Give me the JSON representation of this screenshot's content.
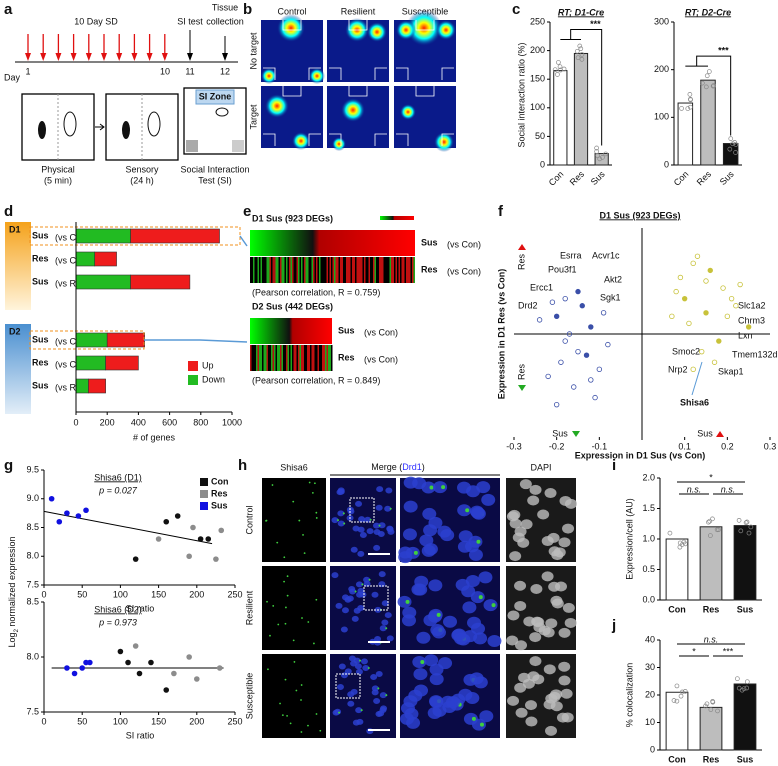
{
  "panel_labels": [
    "a",
    "b",
    "c",
    "d",
    "e",
    "f",
    "g",
    "h",
    "i",
    "j"
  ],
  "a": {
    "protocol": "10 Day SD",
    "day": "Day",
    "days": [
      "1",
      "10",
      "11",
      "12"
    ],
    "si_test": "SI test",
    "tissue": [
      "Tissue",
      "collection"
    ],
    "si_zone": "SI Zone",
    "captions": [
      [
        "Physical",
        "(5 min)"
      ],
      [
        "Sensory",
        "(24 h)"
      ],
      [
        "Social Interaction",
        "Test (SI)"
      ]
    ]
  },
  "b": {
    "columns": [
      "Control",
      "Resilient",
      "Susceptible"
    ],
    "rows": [
      "No target",
      "Target"
    ]
  },
  "c": {
    "ylabel": "Social interaction ratio (%)",
    "significance": "***",
    "charts": [
      {
        "type": "bar",
        "title": "RT; D1-Cre",
        "categories": [
          "Con",
          "Res",
          "Sus"
        ],
        "values": [
          165,
          195,
          20
        ],
        "colors": [
          "#ffffff",
          "#bdbdbd",
          "#bdbdbd"
        ],
        "ylim": [
          0,
          250
        ],
        "yticks": [
          0,
          50,
          100,
          150,
          200,
          250
        ]
      },
      {
        "type": "bar",
        "title": "RT; D2-Cre",
        "categories": [
          "Con",
          "Res",
          "Sus"
        ],
        "values": [
          130,
          178,
          45
        ],
        "colors": [
          "#ffffff",
          "#bdbdbd",
          "#111111"
        ],
        "ylim": [
          0,
          300
        ],
        "yticks": [
          0,
          100,
          200,
          300
        ]
      }
    ]
  },
  "d": {
    "type": "bar",
    "orientation": "horizontal",
    "groups": [
      "D1",
      "D2"
    ],
    "categories": [
      {
        "name": "Sus",
        "qualifier": "(vs Con)"
      },
      {
        "name": "Res",
        "qualifier": "(vs Con)"
      },
      {
        "name": "Sus",
        "qualifier": "(vs Res)"
      },
      {
        "name": "Sus",
        "qualifier": "(vs Con)"
      },
      {
        "name": "Res",
        "qualifier": "(vs Con)"
      },
      {
        "name": "Sus",
        "qualifier": "(vs Res)"
      }
    ],
    "series": [
      {
        "name": "Down",
        "color": "#22bb22",
        "values": [
          350,
          120,
          350,
          200,
          190,
          80
        ]
      },
      {
        "name": "Up",
        "color": "#ee1c1c",
        "values": [
          570,
          140,
          380,
          240,
          210,
          110
        ]
      }
    ],
    "xlim": [
      0,
      1000
    ],
    "xticks": [
      0,
      200,
      400,
      600,
      800,
      1000
    ],
    "xlabel": "# of genes"
  },
  "e": {
    "heatmaps": [
      {
        "title": "D1 Sus (923 DEGs)",
        "note": "(Pearson correlation, R = 0.759)",
        "rows": [
          [
            "Sus",
            "(vs Con)"
          ],
          [
            "Res",
            "(vs Con)"
          ]
        ]
      },
      {
        "title": "D2 Sus (442 DEGs)",
        "note": "(Pearson correlation, R = 0.849)",
        "rows": [
          [
            "Sus",
            "(vs Con)"
          ],
          [
            "Res",
            "(vs Con)"
          ]
        ]
      }
    ]
  },
  "f": {
    "type": "scatter",
    "title": "D1 Sus (923 DEGs)",
    "xlabel": "Expression in D1 Sus (vs Con)",
    "ylabel": "Expression in D1 Res (vs Con)",
    "xlim": [
      -0.3,
      0.3
    ],
    "ylim": [
      -0.3,
      0.3
    ],
    "xticks": [
      -0.3,
      -0.2,
      -0.1,
      0.1,
      0.2,
      0.3
    ],
    "series": [
      {
        "color": "#3a4fa8",
        "x": [
          -0.2,
          -0.15,
          -0.1,
          -0.18,
          -0.12,
          -0.22,
          -0.08,
          -0.16,
          -0.14,
          -0.19,
          -0.11,
          -0.17,
          -0.13,
          -0.24,
          -0.09,
          -0.2,
          -0.15,
          -0.12,
          -0.18,
          -0.21
        ],
        "y": [
          0.05,
          -0.05,
          -0.1,
          0.1,
          0.02,
          -0.12,
          -0.03,
          -0.15,
          0.08,
          -0.08,
          -0.18,
          0.0,
          -0.06,
          0.04,
          0.06,
          -0.2,
          0.12,
          -0.13,
          -0.02,
          0.09
        ]
      },
      {
        "color": "#c8c23a",
        "x": [
          0.1,
          0.15,
          0.2,
          0.12,
          0.18,
          0.08,
          0.22,
          0.14,
          0.16,
          0.11,
          0.19,
          0.13,
          0.25,
          0.09,
          0.17,
          0.21,
          0.15,
          0.12,
          0.23,
          0.07
        ],
        "y": [
          0.1,
          0.15,
          0.05,
          0.2,
          -0.02,
          0.12,
          0.08,
          -0.05,
          0.18,
          0.03,
          0.13,
          0.22,
          0.02,
          0.16,
          -0.08,
          0.1,
          0.06,
          -0.1,
          0.14,
          0.05
        ]
      }
    ],
    "quadrant_labels": [
      "Res",
      "Res",
      "Sus",
      "Sus"
    ],
    "gene_labels": [
      "Esrra",
      "Acvr1c",
      "Pou3f1",
      "Akt2",
      "Ercc1",
      "Sgk1",
      "Drd2",
      "Slc1a2",
      "Chrm3",
      "Lxn",
      "Smoc2",
      "Nrp2",
      "Tmem132d",
      "Skap1"
    ],
    "highlight_gene": "Shisa6"
  },
  "g": {
    "xlabel": "SI ratio",
    "ylabel": [
      "Log",
      "2",
      " normalized expression"
    ],
    "charts": [
      {
        "type": "scatter",
        "title": "Shisa6 (D1)",
        "p": "p = 0.027",
        "xlim": [
          0,
          250
        ],
        "xticks": [
          0,
          50,
          100,
          150,
          200,
          250
        ],
        "ylim": [
          7.5,
          9.5
        ],
        "yticks": [
          7.5,
          {
            "value": 8,
            "label": "8.0"
          },
          8.5,
          {
            "value": 9,
            "label": "9.0"
          },
          9.5
        ],
        "series": [
          {
            "name": "Con",
            "color": "#111111",
            "x": [
              120,
              160,
              175,
              205,
              215
            ],
            "y": [
              7.95,
              8.6,
              8.7,
              8.3,
              8.3
            ]
          },
          {
            "name": "Res",
            "color": "#8c8c8c",
            "x": [
              150,
              190,
              195,
              225,
              232
            ],
            "y": [
              8.3,
              8.0,
              8.5,
              7.95,
              8.45
            ]
          },
          {
            "name": "Sus",
            "color": "#1010e0",
            "x": [
              10,
              20,
              30,
              45,
              55
            ],
            "y": [
              9.0,
              8.6,
              8.75,
              8.7,
              8.8
            ]
          }
        ],
        "trend": {
          "x": [
            0,
            220
          ],
          "y": [
            8.78,
            8.22
          ]
        }
      },
      {
        "type": "scatter",
        "title": "Shisa6 (D2)",
        "p": "p = 0.973",
        "xlim": [
          0,
          250
        ],
        "xticks": [
          0,
          50,
          100,
          150,
          200,
          250
        ],
        "ylim": [
          7.5,
          8.5
        ],
        "yticks": [
          7.5,
          {
            "value": 8,
            "label": "8.0"
          },
          8.5
        ],
        "series": [
          {
            "color": "#111111",
            "x": [
              100,
              110,
              125,
              140,
              160
            ],
            "y": [
              8.05,
              7.95,
              7.85,
              7.95,
              7.7
            ]
          },
          {
            "color": "#8c8c8c",
            "x": [
              120,
              170,
              190,
              200,
              230
            ],
            "y": [
              8.1,
              7.85,
              8.0,
              7.8,
              7.9
            ]
          },
          {
            "color": "#1010e0",
            "x": [
              30,
              40,
              50,
              55,
              60
            ],
            "y": [
              7.9,
              7.85,
              7.9,
              7.95,
              7.95
            ]
          }
        ],
        "trend": {
          "x": [
            10,
            235
          ],
          "y": [
            7.9,
            7.9
          ]
        }
      }
    ]
  },
  "h": {
    "stain": "Shisa6",
    "merge": [
      "Merge (",
      "Drd1",
      ")"
    ],
    "dapi": "DAPI",
    "rows": [
      "Control",
      "Resilient",
      "Susceptible"
    ]
  },
  "i": {
    "type": "bar",
    "ylabel": "Expression/cell (AU)",
    "categories": [
      "Con",
      "Res",
      "Sus"
    ],
    "values": [
      1.0,
      1.2,
      1.22
    ],
    "colors": [
      "#ffffff",
      "#bdbdbd",
      "#111111"
    ],
    "ylim": [
      0,
      2
    ],
    "yticks": [
      {
        "value": 0,
        "label": "0.0"
      },
      0.5,
      {
        "value": 1,
        "label": "1.0"
      },
      1.5,
      {
        "value": 2,
        "label": "2.0"
      }
    ],
    "significance": [
      "n.s.",
      "*",
      "n.s."
    ]
  },
  "j": {
    "type": "bar",
    "ylabel": "% colocalization",
    "categories": [
      "Con",
      "Res",
      "Sus"
    ],
    "values": [
      21,
      15.5,
      24
    ],
    "colors": [
      "#ffffff",
      "#bdbdbd",
      "#111111"
    ],
    "ylim": [
      0,
      40
    ],
    "yticks": [
      0,
      10,
      20,
      30,
      40
    ],
    "significance": [
      "*",
      "***",
      "n.s."
    ]
  }
}
